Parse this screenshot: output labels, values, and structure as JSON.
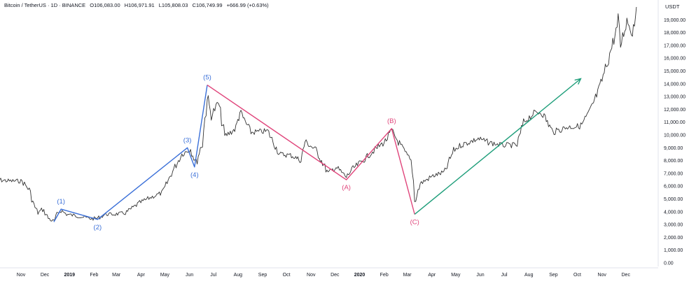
{
  "header": {
    "symbol": "Bitcoin / TetherUS · 1D · BINANCE",
    "open": "O106,083.00",
    "high": "H106,971.91",
    "low": "L105,808.03",
    "close": "C106,749.99",
    "change": "+666.99 (+0.63%)"
  },
  "currency_label": "USDT",
  "colors": {
    "background": "#ffffff",
    "price": "#222222",
    "impulse_wave": "#3a6fd8",
    "corrective_wave": "#e0457b",
    "trend_arrow": "#1e9e7a",
    "axis_text": "#131722",
    "grid": "#f0f3fa"
  },
  "chart_data": {
    "type": "line",
    "title": "",
    "xlabel": "",
    "ylabel": "",
    "ylim": [
      0,
      20000
    ],
    "grid": false,
    "x_ticks": [
      "Nov",
      "Dec",
      "2019",
      "Feb",
      "Mar",
      "Apr",
      "May",
      "Jun",
      "Jul",
      "Aug",
      "Sep",
      "Oct",
      "Nov",
      "Dec",
      "2020",
      "Feb",
      "Mar",
      "Apr",
      "May",
      "Jun",
      "Jul",
      "Aug",
      "Sep",
      "Oct",
      "Nov",
      "Dec"
    ],
    "y_ticks": [
      "0.00",
      "1,000.00",
      "2,000.00",
      "3,000.00",
      "4,000.00",
      "5,000.00",
      "6,000.00",
      "7,000.00",
      "8,000.00",
      "9,000.00",
      "10,000.00",
      "11,000.00",
      "12,000.00",
      "13,000.00",
      "14,000.00",
      "15,000.00",
      "16,000.00",
      "17,000.00",
      "18,000.00",
      "19,000.00"
    ],
    "series": [
      {
        "values": [
          {
            "x": "2018-10-01",
            "y": 7300
          },
          {
            "x": "2018-10-05",
            "y": 6500
          },
          {
            "x": "2018-10-20",
            "y": 6400
          },
          {
            "x": "2018-11-05",
            "y": 6400
          },
          {
            "x": "2018-11-14",
            "y": 5700
          },
          {
            "x": "2018-11-20",
            "y": 4500
          },
          {
            "x": "2018-11-25",
            "y": 3900
          },
          {
            "x": "2018-12-01",
            "y": 4200
          },
          {
            "x": "2018-12-08",
            "y": 3500
          },
          {
            "x": "2018-12-15",
            "y": 3200
          },
          {
            "x": "2018-12-20",
            "y": 3900
          },
          {
            "x": "2018-12-24",
            "y": 4100
          },
          {
            "x": "2018-12-31",
            "y": 3800
          },
          {
            "x": "2019-01-10",
            "y": 3700
          },
          {
            "x": "2019-01-20",
            "y": 3600
          },
          {
            "x": "2019-02-01",
            "y": 3450
          },
          {
            "x": "2019-02-08",
            "y": 3500
          },
          {
            "x": "2019-02-18",
            "y": 3800
          },
          {
            "x": "2019-03-01",
            "y": 3800
          },
          {
            "x": "2019-03-15",
            "y": 3900
          },
          {
            "x": "2019-04-02",
            "y": 4700
          },
          {
            "x": "2019-04-15",
            "y": 5100
          },
          {
            "x": "2019-05-01",
            "y": 5500
          },
          {
            "x": "2019-05-12",
            "y": 7000
          },
          {
            "x": "2019-05-25",
            "y": 8500
          },
          {
            "x": "2019-06-05",
            "y": 8900
          },
          {
            "x": "2019-06-12",
            "y": 7800
          },
          {
            "x": "2019-06-20",
            "y": 9500
          },
          {
            "x": "2019-06-26",
            "y": 13000
          },
          {
            "x": "2019-07-01",
            "y": 11500
          },
          {
            "x": "2019-07-10",
            "y": 12500
          },
          {
            "x": "2019-07-18",
            "y": 9900
          },
          {
            "x": "2019-08-01",
            "y": 10500
          },
          {
            "x": "2019-08-06",
            "y": 11800
          },
          {
            "x": "2019-08-20",
            "y": 10200
          },
          {
            "x": "2019-09-10",
            "y": 10300
          },
          {
            "x": "2019-09-25",
            "y": 8500
          },
          {
            "x": "2019-10-10",
            "y": 8400
          },
          {
            "x": "2019-10-22",
            "y": 8000
          },
          {
            "x": "2019-10-27",
            "y": 9500
          },
          {
            "x": "2019-11-10",
            "y": 8800
          },
          {
            "x": "2019-11-25",
            "y": 7000
          },
          {
            "x": "2019-12-05",
            "y": 7500
          },
          {
            "x": "2019-12-18",
            "y": 6700
          },
          {
            "x": "2019-12-25",
            "y": 7300
          },
          {
            "x": "2020-01-08",
            "y": 8000
          },
          {
            "x": "2020-01-20",
            "y": 8700
          },
          {
            "x": "2020-02-05",
            "y": 9500
          },
          {
            "x": "2020-02-13",
            "y": 10300
          },
          {
            "x": "2020-02-20",
            "y": 9600
          },
          {
            "x": "2020-03-01",
            "y": 8600
          },
          {
            "x": "2020-03-10",
            "y": 7800
          },
          {
            "x": "2020-03-13",
            "y": 4800
          },
          {
            "x": "2020-03-20",
            "y": 6200
          },
          {
            "x": "2020-04-05",
            "y": 6800
          },
          {
            "x": "2020-04-20",
            "y": 7100
          },
          {
            "x": "2020-05-01",
            "y": 8800
          },
          {
            "x": "2020-05-10",
            "y": 9200
          },
          {
            "x": "2020-06-01",
            "y": 9700
          },
          {
            "x": "2020-06-15",
            "y": 9400
          },
          {
            "x": "2020-07-01",
            "y": 9200
          },
          {
            "x": "2020-07-20",
            "y": 9200
          },
          {
            "x": "2020-07-28",
            "y": 11000
          },
          {
            "x": "2020-08-10",
            "y": 11700
          },
          {
            "x": "2020-08-20",
            "y": 11800
          },
          {
            "x": "2020-09-03",
            "y": 10200
          },
          {
            "x": "2020-09-20",
            "y": 10600
          },
          {
            "x": "2020-10-08",
            "y": 10700
          },
          {
            "x": "2020-10-20",
            "y": 11900
          },
          {
            "x": "2020-11-01",
            "y": 13700
          },
          {
            "x": "2020-11-12",
            "y": 16000
          },
          {
            "x": "2020-11-24",
            "y": 18700
          },
          {
            "x": "2020-11-27",
            "y": 17000
          },
          {
            "x": "2020-12-05",
            "y": 19000
          },
          {
            "x": "2020-12-12",
            "y": 18000
          },
          {
            "x": "2020-12-17",
            "y": 20000
          }
        ]
      }
    ],
    "waves": [
      {
        "name": "impulse",
        "color": "#3a6fd8",
        "points": [
          {
            "x": "2018-12-15",
            "y": 3200,
            "label": ""
          },
          {
            "x": "2018-12-24",
            "y": 4200,
            "label": "(1)"
          },
          {
            "x": "2019-02-08",
            "y": 3400,
            "label": "(2)"
          },
          {
            "x": "2019-06-01",
            "y": 9000,
            "label": "(3)"
          },
          {
            "x": "2019-06-10",
            "y": 7500,
            "label": "(4)"
          },
          {
            "x": "2019-06-26",
            "y": 13900,
            "label": "(5)"
          }
        ]
      },
      {
        "name": "corrective",
        "color": "#e0457b",
        "points": [
          {
            "x": "2019-06-26",
            "y": 13900,
            "label": ""
          },
          {
            "x": "2019-12-18",
            "y": 6500,
            "label": "(A)"
          },
          {
            "x": "2020-02-13",
            "y": 10500,
            "label": "(B)"
          },
          {
            "x": "2020-03-13",
            "y": 3800,
            "label": "(C)"
          }
        ]
      }
    ],
    "trend_arrow": {
      "color": "#1e9e7a",
      "from": {
        "x": "2020-03-13",
        "y": 3800
      },
      "to": {
        "x": "2020-10-08",
        "y": 14400
      }
    }
  }
}
